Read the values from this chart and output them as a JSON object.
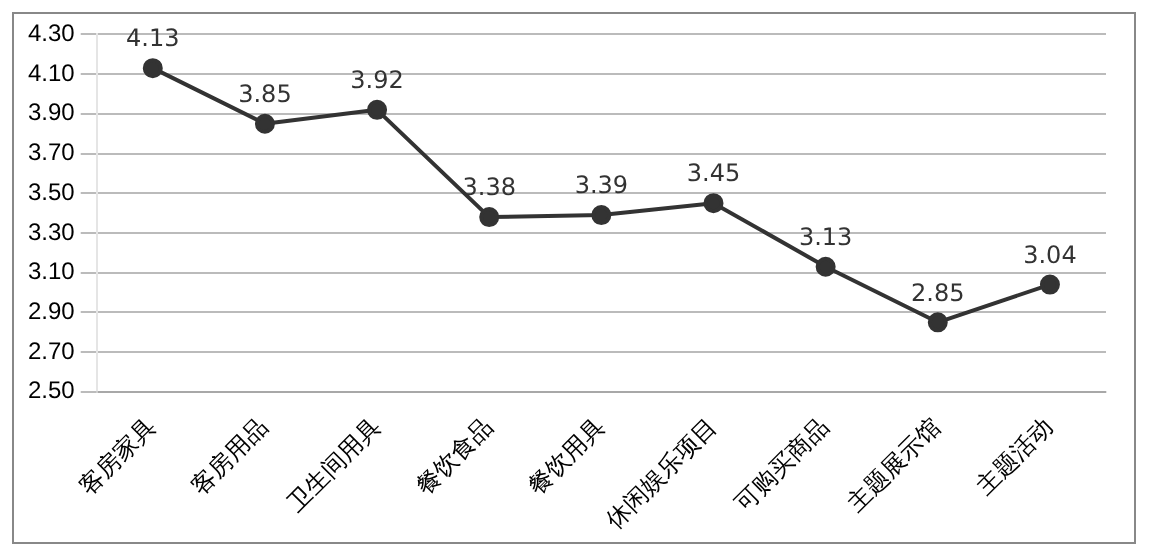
{
  "chart_data": {
    "type": "line",
    "categories": [
      "客房家具",
      "客房用品",
      "卫生间用具",
      "餐饮食品",
      "餐饮用具",
      "休闲娱乐项目",
      "可购买商品",
      "主题展示馆",
      "主题活动"
    ],
    "series": [
      {
        "color": "#333333",
        "values": [
          4.13,
          3.85,
          3.92,
          3.38,
          3.39,
          3.45,
          3.13,
          2.85,
          3.04
        ]
      }
    ],
    "ylim": [
      2.5,
      4.3
    ],
    "yticks": [
      {
        "value": 2.5,
        "label": "2.50"
      },
      {
        "value": 2.7,
        "label": "2.70"
      },
      {
        "value": 2.9,
        "label": "2.90"
      },
      {
        "value": 3.1,
        "label": "3.10"
      },
      {
        "value": 3.3,
        "label": "3.30"
      },
      {
        "value": 3.5,
        "label": "3.50"
      },
      {
        "value": 3.7,
        "label": "3.70"
      },
      {
        "value": 3.9,
        "label": "3.90"
      },
      {
        "value": 4.1,
        "label": "4.10"
      },
      {
        "value": 4.3,
        "label": "4.30"
      }
    ],
    "grid": "y",
    "marker": "circle",
    "data_labels": true,
    "legend": false
  }
}
